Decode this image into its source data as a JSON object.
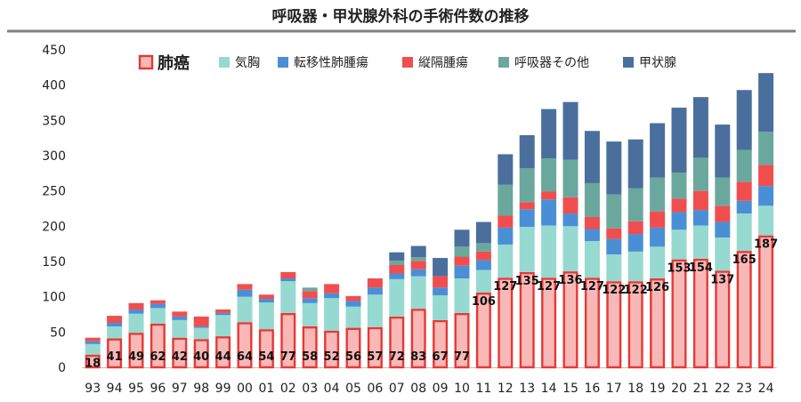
{
  "chart_data": {
    "type": "bar",
    "stacked": true,
    "title": "呼吸器・甲状腺外科の手術件数の推移",
    "xlabel": "",
    "ylabel": "",
    "ylim": [
      0,
      450
    ],
    "yticks": [
      0,
      50,
      100,
      150,
      200,
      250,
      300,
      350,
      400,
      450
    ],
    "grid": false,
    "legend_position": "top",
    "categories": [
      "93",
      "94",
      "95",
      "96",
      "97",
      "98",
      "99",
      "00",
      "01",
      "02",
      "03",
      "04",
      "05",
      "06",
      "07",
      "08",
      "09",
      "10",
      "11",
      "12",
      "13",
      "14",
      "15",
      "16",
      "17",
      "18",
      "19",
      "20",
      "21",
      "22",
      "23",
      "24"
    ],
    "series": [
      {
        "name": "肺癌",
        "color": "#f9b8b8",
        "stroke": "#e53935",
        "values": [
          18,
          41,
          49,
          62,
          42,
          40,
          44,
          64,
          54,
          77,
          58,
          52,
          56,
          57,
          72,
          83,
          67,
          77,
          106,
          127,
          135,
          127,
          136,
          127,
          122,
          122,
          126,
          153,
          154,
          137,
          165,
          187
        ]
      },
      {
        "name": "気胸",
        "color": "#96d9d0",
        "values": [
          15,
          17,
          27,
          22,
          25,
          16,
          30,
          36,
          38,
          45,
          33,
          46,
          30,
          46,
          53,
          46,
          35,
          49,
          32,
          47,
          64,
          74,
          64,
          52,
          38,
          42,
          45,
          42,
          47,
          47,
          53,
          42
        ]
      },
      {
        "name": "転移性肺腫瘍",
        "color": "#4a8fd6",
        "values": [
          4,
          5,
          6,
          6,
          5,
          2,
          3,
          10,
          5,
          4,
          7,
          7,
          8,
          10,
          8,
          10,
          11,
          18,
          14,
          24,
          25,
          37,
          18,
          17,
          22,
          25,
          27,
          25,
          22,
          22,
          18,
          28
        ]
      },
      {
        "name": "縦隔腫瘍",
        "color": "#f04e4e",
        "values": [
          5,
          10,
          9,
          5,
          7,
          14,
          5,
          8,
          6,
          9,
          10,
          13,
          7,
          13,
          12,
          12,
          16,
          13,
          12,
          17,
          10,
          11,
          23,
          17,
          15,
          18,
          23,
          19,
          27,
          23,
          27,
          30
        ]
      },
      {
        "name": "呼吸器その他",
        "color": "#6aa89e",
        "values": [
          0,
          0,
          0,
          0,
          0,
          0,
          0,
          0,
          0,
          0,
          5,
          0,
          0,
          0,
          6,
          5,
          0,
          14,
          12,
          44,
          48,
          47,
          53,
          48,
          48,
          47,
          48,
          37,
          47,
          40,
          45,
          47
        ]
      },
      {
        "name": "甲状腺",
        "color": "#4a6f9c",
        "values": [
          0,
          0,
          0,
          0,
          0,
          0,
          0,
          0,
          0,
          0,
          0,
          0,
          0,
          0,
          12,
          16,
          26,
          24,
          30,
          43,
          47,
          70,
          82,
          74,
          75,
          69,
          77,
          92,
          86,
          75,
          85,
          83
        ]
      }
    ]
  }
}
